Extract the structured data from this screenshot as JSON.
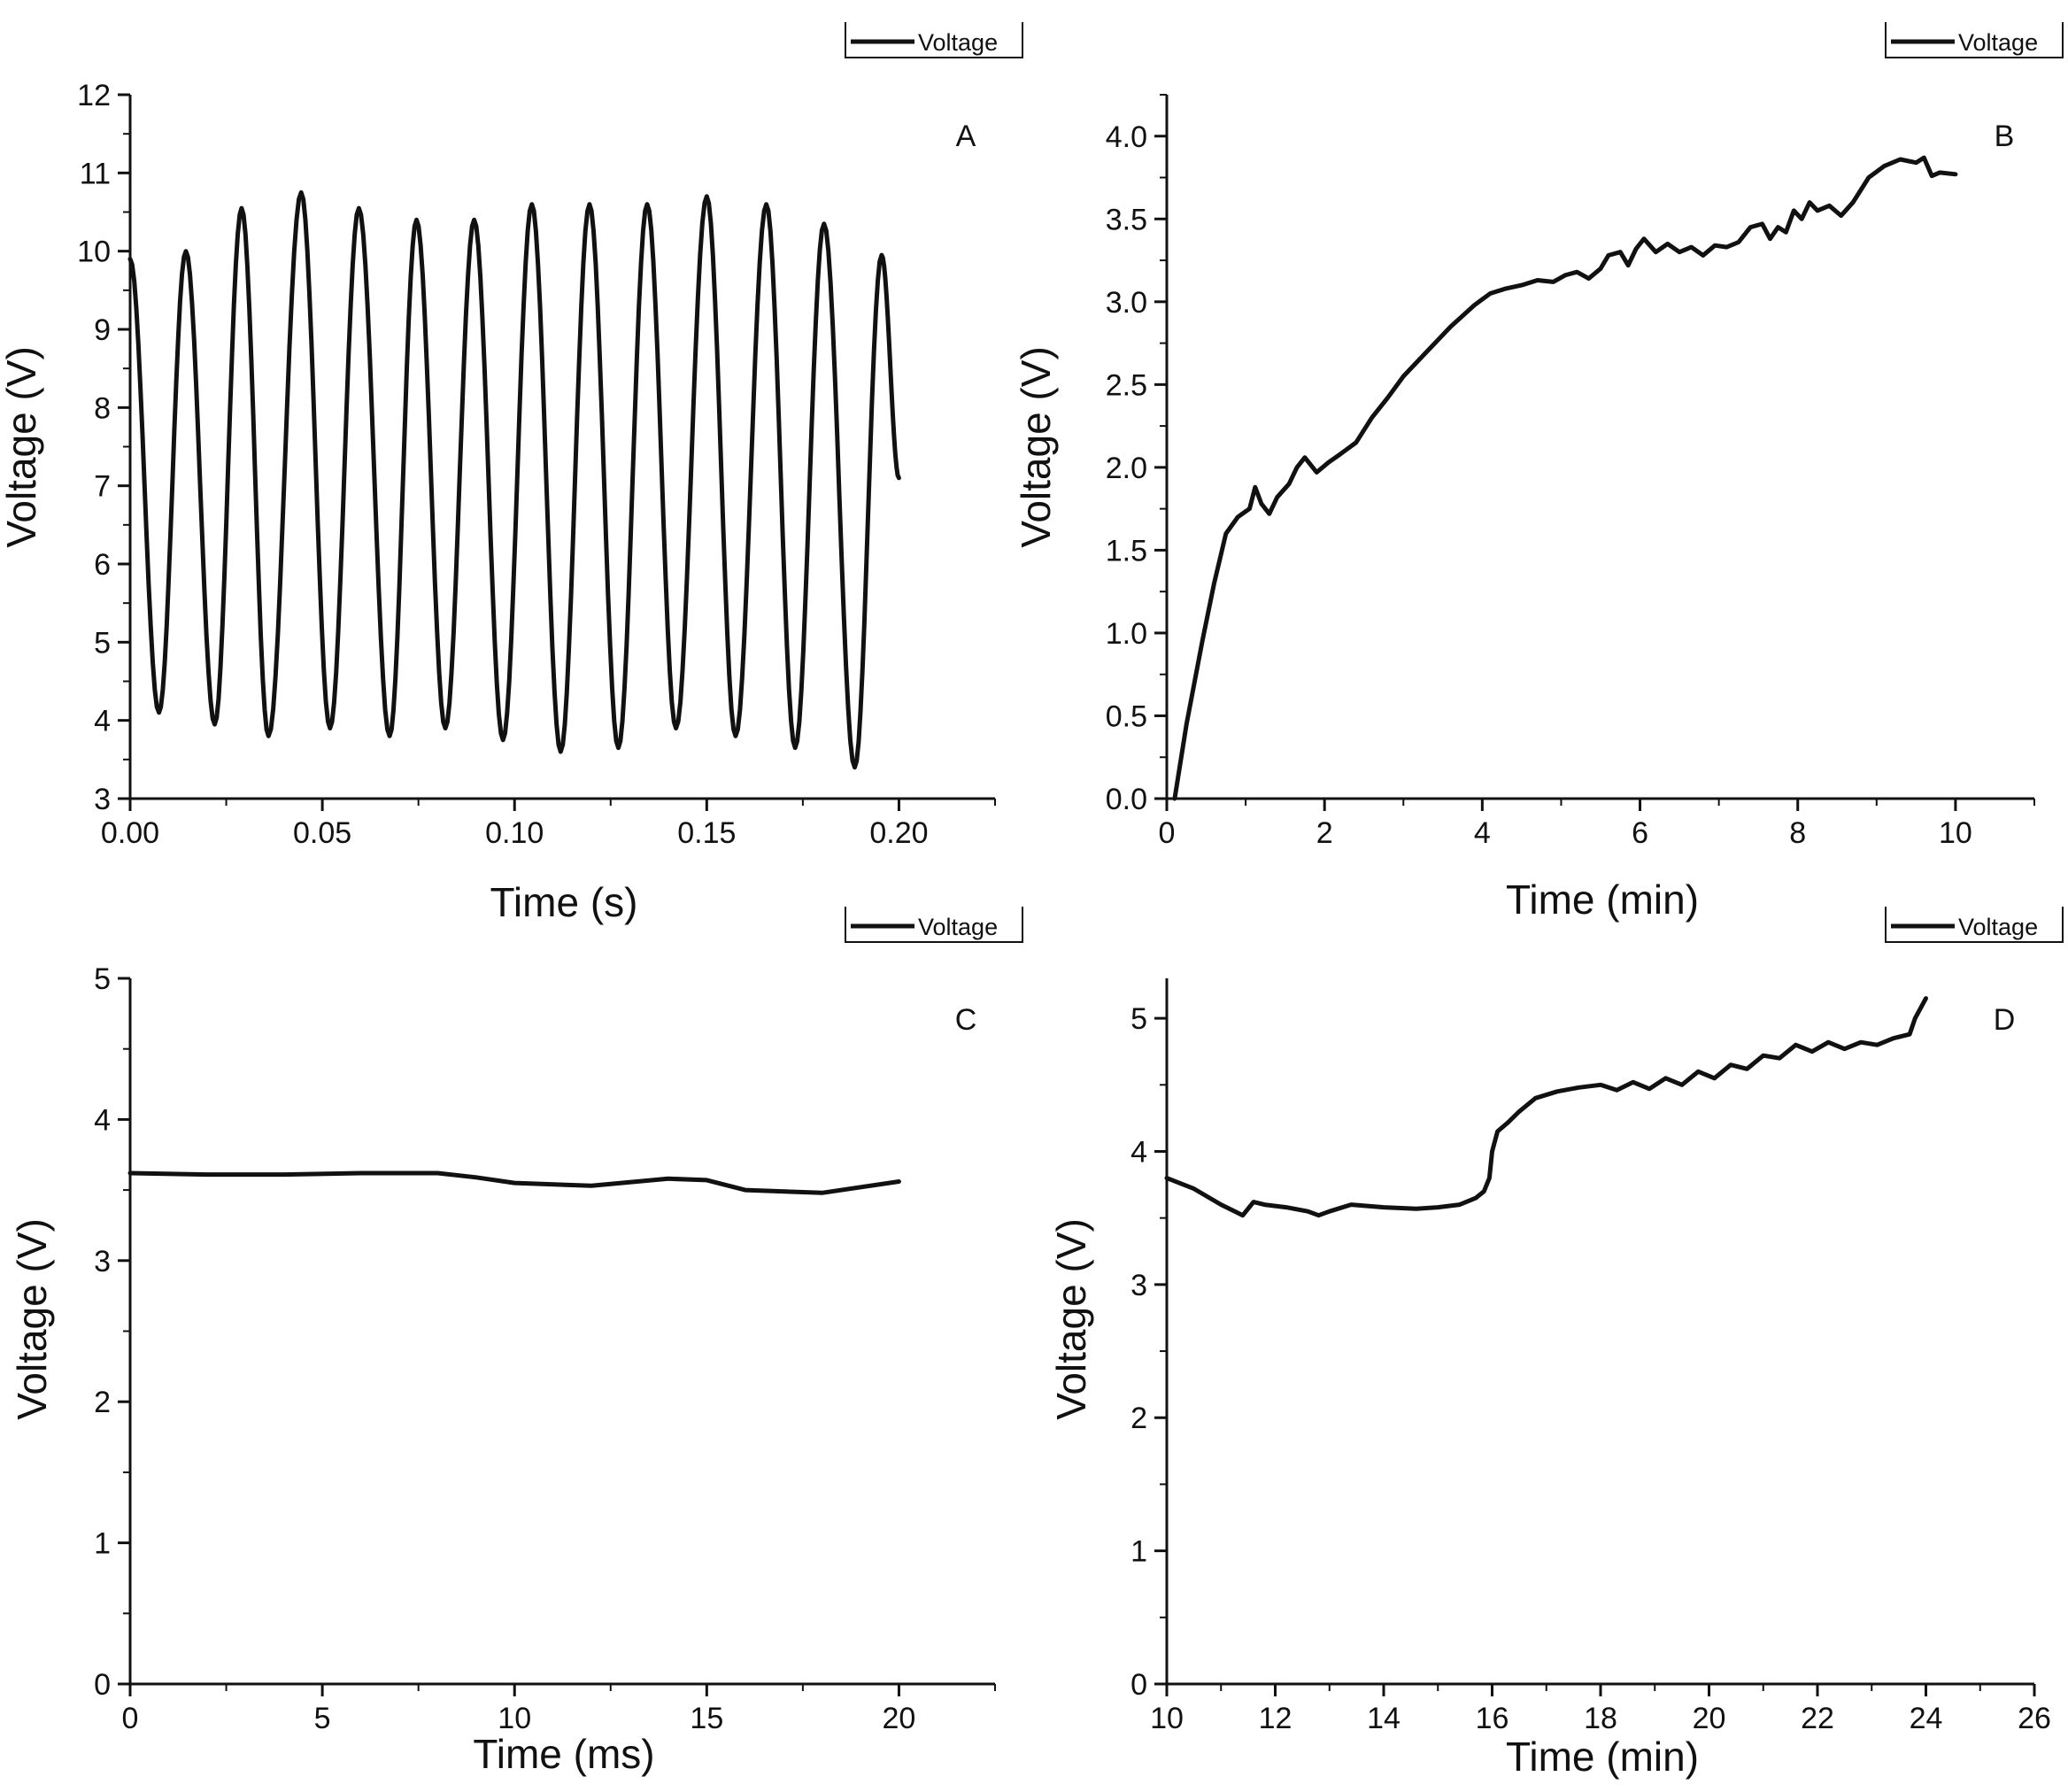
{
  "figure": {
    "line_color": "#111111",
    "background": "#ffffff"
  },
  "chart_data": [
    {
      "id": "A",
      "type": "line",
      "panel_label": "A",
      "title": "",
      "xlabel": "Time (s)",
      "ylabel": "Voltage (V)",
      "xlim": [
        0,
        0.225
      ],
      "ylim": [
        3,
        12
      ],
      "x_ticks": [
        0,
        0.05,
        0.1,
        0.15,
        0.2
      ],
      "x_tick_labels": [
        "0.00",
        "0.05",
        "0.10",
        "0.15",
        "0.20"
      ],
      "y_ticks": [
        3,
        4,
        5,
        6,
        7,
        8,
        9,
        10,
        11,
        12
      ],
      "y_tick_labels": [
        "3",
        "4",
        "5",
        "6",
        "7",
        "8",
        "9",
        "10",
        "11",
        "12"
      ],
      "grid": false,
      "legend": {
        "label": "Voltage",
        "position": "top-right"
      },
      "series": [
        {
          "name": "Voltage",
          "x": [
            0.0,
            0.0075,
            0.0145,
            0.022,
            0.029,
            0.036,
            0.0445,
            0.052,
            0.0595,
            0.0675,
            0.0745,
            0.082,
            0.0895,
            0.097,
            0.1045,
            0.112,
            0.1195,
            0.127,
            0.1345,
            0.142,
            0.15,
            0.1575,
            0.1655,
            0.173,
            0.1805,
            0.1885,
            0.1955,
            0.2
          ],
          "y": [
            9.9,
            4.1,
            10.0,
            3.95,
            10.55,
            3.8,
            10.75,
            3.9,
            10.55,
            3.8,
            10.4,
            3.9,
            10.4,
            3.75,
            10.6,
            3.6,
            10.6,
            3.65,
            10.6,
            3.9,
            10.7,
            3.8,
            10.6,
            3.65,
            10.35,
            3.4,
            9.95,
            7.1
          ]
        }
      ]
    },
    {
      "id": "B",
      "type": "line",
      "panel_label": "B",
      "title": "",
      "xlabel": "Time (min)",
      "ylabel": "Voltage (V)",
      "xlim": [
        0,
        11
      ],
      "ylim": [
        0,
        4.25
      ],
      "x_ticks": [
        0,
        2,
        4,
        6,
        8,
        10
      ],
      "x_tick_labels": [
        "0",
        "2",
        "4",
        "6",
        "8",
        "10"
      ],
      "y_ticks": [
        0,
        0.5,
        1.0,
        1.5,
        2.0,
        2.5,
        3.0,
        3.5,
        4.0
      ],
      "y_tick_labels": [
        "0.0",
        "0.5",
        "1.0",
        "1.5",
        "2.0",
        "2.5",
        "3.0",
        "3.5",
        "4.0"
      ],
      "grid": false,
      "legend": {
        "label": "Voltage",
        "position": "top-right"
      },
      "series": [
        {
          "name": "Voltage",
          "x": [
            0.1,
            0.25,
            0.45,
            0.6,
            0.75,
            0.9,
            1.05,
            1.12,
            1.2,
            1.3,
            1.4,
            1.55,
            1.65,
            1.75,
            1.8,
            1.9,
            2.05,
            2.2,
            2.4,
            2.6,
            2.8,
            3.0,
            3.3,
            3.6,
            3.9,
            4.1,
            4.3,
            4.5,
            4.7,
            4.9,
            5.05,
            5.2,
            5.35,
            5.5,
            5.6,
            5.75,
            5.85,
            5.95,
            6.05,
            6.2,
            6.35,
            6.5,
            6.65,
            6.8,
            6.95,
            7.1,
            7.25,
            7.4,
            7.55,
            7.65,
            7.75,
            7.85,
            7.95,
            8.05,
            8.15,
            8.25,
            8.4,
            8.55,
            8.7,
            8.9,
            9.1,
            9.3,
            9.5,
            9.6,
            9.7,
            9.8,
            10.0
          ],
          "y": [
            0.0,
            0.45,
            0.95,
            1.3,
            1.6,
            1.7,
            1.75,
            1.88,
            1.78,
            1.72,
            1.82,
            1.9,
            2.0,
            2.06,
            2.03,
            1.97,
            2.03,
            2.08,
            2.15,
            2.3,
            2.42,
            2.55,
            2.7,
            2.85,
            2.98,
            3.05,
            3.08,
            3.1,
            3.13,
            3.12,
            3.16,
            3.18,
            3.14,
            3.2,
            3.28,
            3.3,
            3.22,
            3.32,
            3.38,
            3.3,
            3.35,
            3.3,
            3.33,
            3.28,
            3.34,
            3.33,
            3.36,
            3.45,
            3.47,
            3.38,
            3.45,
            3.42,
            3.55,
            3.5,
            3.6,
            3.55,
            3.58,
            3.52,
            3.6,
            3.75,
            3.82,
            3.86,
            3.84,
            3.87,
            3.76,
            3.78,
            3.77
          ]
        }
      ]
    },
    {
      "id": "C",
      "type": "line",
      "panel_label": "C",
      "title": "",
      "xlabel": "Time (ms)",
      "ylabel": "Voltage (V)",
      "xlim": [
        0,
        22.5
      ],
      "ylim": [
        0,
        5
      ],
      "x_ticks": [
        0,
        5,
        10,
        15,
        20
      ],
      "x_tick_labels": [
        "0",
        "5",
        "10",
        "15",
        "20"
      ],
      "y_ticks": [
        0,
        1,
        2,
        3,
        4,
        5
      ],
      "y_tick_labels": [
        "0",
        "1",
        "2",
        "3",
        "4",
        "5"
      ],
      "grid": false,
      "legend": {
        "label": "Voltage",
        "position": "top-right"
      },
      "series": [
        {
          "name": "Voltage",
          "x": [
            0,
            2,
            4,
            6,
            8,
            9,
            10,
            12,
            14,
            15,
            16,
            18,
            20
          ],
          "y": [
            3.62,
            3.61,
            3.61,
            3.62,
            3.62,
            3.59,
            3.55,
            3.53,
            3.58,
            3.57,
            3.5,
            3.48,
            3.56
          ]
        }
      ]
    },
    {
      "id": "D",
      "type": "line",
      "panel_label": "D",
      "title": "",
      "xlabel": "Time (min)",
      "ylabel": "Voltage (V)",
      "xlim": [
        10,
        26
      ],
      "ylim": [
        0,
        5.3
      ],
      "x_ticks": [
        10,
        12,
        14,
        16,
        18,
        20,
        22,
        24,
        26
      ],
      "x_tick_labels": [
        "10",
        "12",
        "14",
        "16",
        "18",
        "20",
        "22",
        "24",
        "26"
      ],
      "y_ticks": [
        0,
        1,
        2,
        3,
        4,
        5
      ],
      "y_tick_labels": [
        "0",
        "1",
        "2",
        "3",
        "4",
        "5"
      ],
      "grid": false,
      "legend": {
        "label": "Voltage",
        "position": "top-right"
      },
      "series": [
        {
          "name": "Voltage",
          "x": [
            10.0,
            10.5,
            11.0,
            11.4,
            11.6,
            11.8,
            12.2,
            12.6,
            12.8,
            13.0,
            13.4,
            14.0,
            14.6,
            15.0,
            15.4,
            15.7,
            15.85,
            15.95,
            16.0,
            16.1,
            16.3,
            16.5,
            16.8,
            17.2,
            17.6,
            18.0,
            18.3,
            18.6,
            18.9,
            19.2,
            19.5,
            19.8,
            20.1,
            20.4,
            20.7,
            21.0,
            21.3,
            21.6,
            21.9,
            22.2,
            22.5,
            22.8,
            23.1,
            23.4,
            23.7,
            23.8,
            24.0
          ],
          "y": [
            3.8,
            3.72,
            3.6,
            3.52,
            3.62,
            3.6,
            3.58,
            3.55,
            3.52,
            3.55,
            3.6,
            3.58,
            3.57,
            3.58,
            3.6,
            3.65,
            3.7,
            3.8,
            4.0,
            4.15,
            4.22,
            4.3,
            4.4,
            4.45,
            4.48,
            4.5,
            4.46,
            4.52,
            4.47,
            4.55,
            4.5,
            4.6,
            4.55,
            4.65,
            4.62,
            4.72,
            4.7,
            4.8,
            4.75,
            4.82,
            4.77,
            4.82,
            4.8,
            4.85,
            4.88,
            5.0,
            5.15
          ]
        }
      ]
    }
  ]
}
